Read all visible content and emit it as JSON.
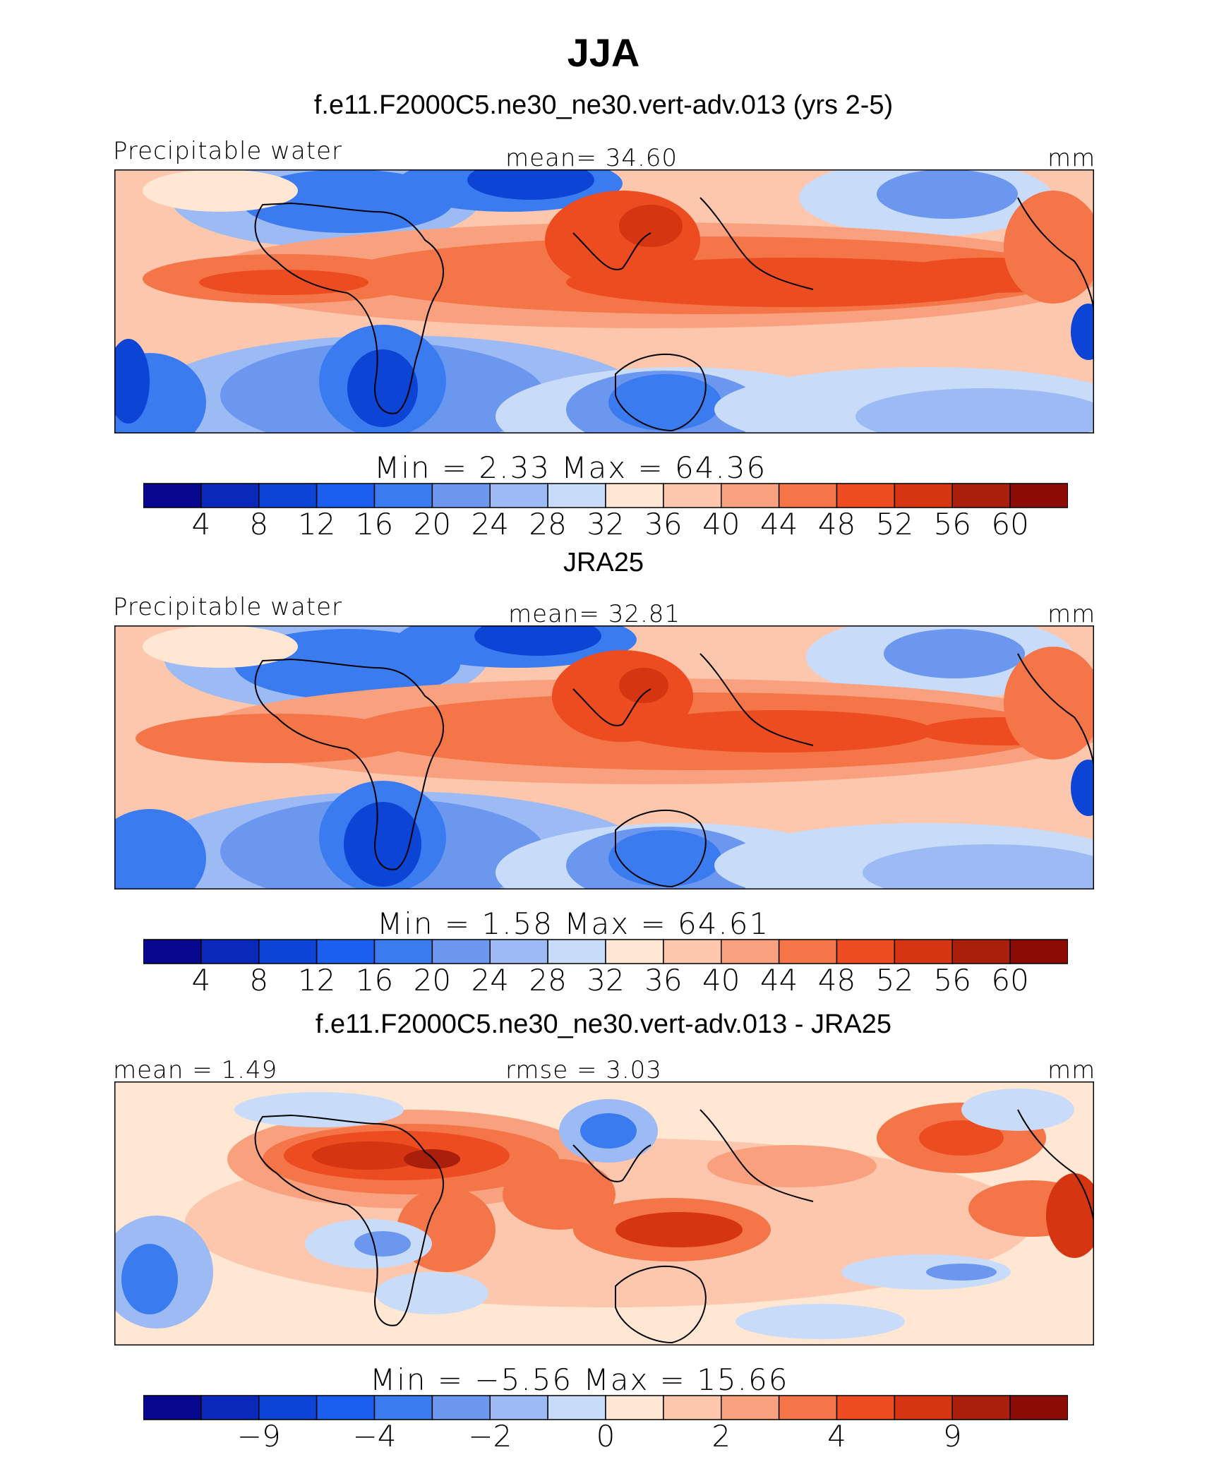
{
  "title": "JJA",
  "colors": [
    "#08088f",
    "#0a28b9",
    "#0c44d6",
    "#1a5ff0",
    "#3a7bf0",
    "#6b98ee",
    "#9cbaf4",
    "#c8dcfa",
    "#ffe7d4",
    "#fcc7ad",
    "#f9a17e",
    "#f47547",
    "#ec4c1f",
    "#d53510",
    "#a91f0c",
    "#8a0c05"
  ],
  "panels": [
    {
      "title": "f.e11.F2000C5.ne30_ne30.vert-adv.013 (yrs 2-5)",
      "left_label": "Precipitable water",
      "center_label": "mean=   34.60",
      "right_label": "mm",
      "min_label": "Min  =     2.33  Max  =    64.36",
      "ticks": [
        "4",
        "8",
        "12",
        "16",
        "20",
        "24",
        "28",
        "32",
        "36",
        "40",
        "44",
        "48",
        "52",
        "56",
        "60"
      ]
    },
    {
      "title": "JRA25",
      "left_label": "Precipitable water",
      "center_label": "mean=   32.81",
      "right_label": "mm",
      "min_label": "Min  =     1.58  Max  =    64.61",
      "ticks": [
        "4",
        "8",
        "12",
        "16",
        "20",
        "24",
        "28",
        "32",
        "36",
        "40",
        "44",
        "48",
        "52",
        "56",
        "60"
      ]
    },
    {
      "title": "f.e11.F2000C5.ne30_ne30.vert-adv.013 - JRA25",
      "left_label": "mean =    1.49",
      "center_label": "rmse =     3.03",
      "right_label": "mm",
      "min_label": "Min  =   −5.56  Max  =    15.66",
      "ticks": [
        "−9",
        "−4",
        "−2",
        "0",
        "2",
        "4",
        "9"
      ]
    }
  ],
  "chart_data": [
    {
      "type": "heatmap",
      "title": "f.e11.F2000C5.ne30_ne30.vert-adv.013 (yrs 2-5)",
      "variable": "Precipitable water",
      "units": "mm",
      "mean": 34.6,
      "min": 2.33,
      "max": 64.36,
      "contour_levels": [
        4,
        8,
        12,
        16,
        20,
        24,
        28,
        32,
        36,
        40,
        44,
        48,
        52,
        56,
        60
      ]
    },
    {
      "type": "heatmap",
      "title": "JRA25",
      "variable": "Precipitable water",
      "units": "mm",
      "mean": 32.81,
      "min": 1.58,
      "max": 64.61,
      "contour_levels": [
        4,
        8,
        12,
        16,
        20,
        24,
        28,
        32,
        36,
        40,
        44,
        48,
        52,
        56,
        60
      ]
    },
    {
      "type": "heatmap",
      "title": "f.e11.F2000C5.ne30_ne30.vert-adv.013 - JRA25",
      "units": "mm",
      "mean": 1.49,
      "rmse": 3.03,
      "min": -5.56,
      "max": 15.66,
      "contour_levels": [
        -9,
        -4,
        -2,
        0,
        2,
        4,
        9
      ]
    }
  ]
}
